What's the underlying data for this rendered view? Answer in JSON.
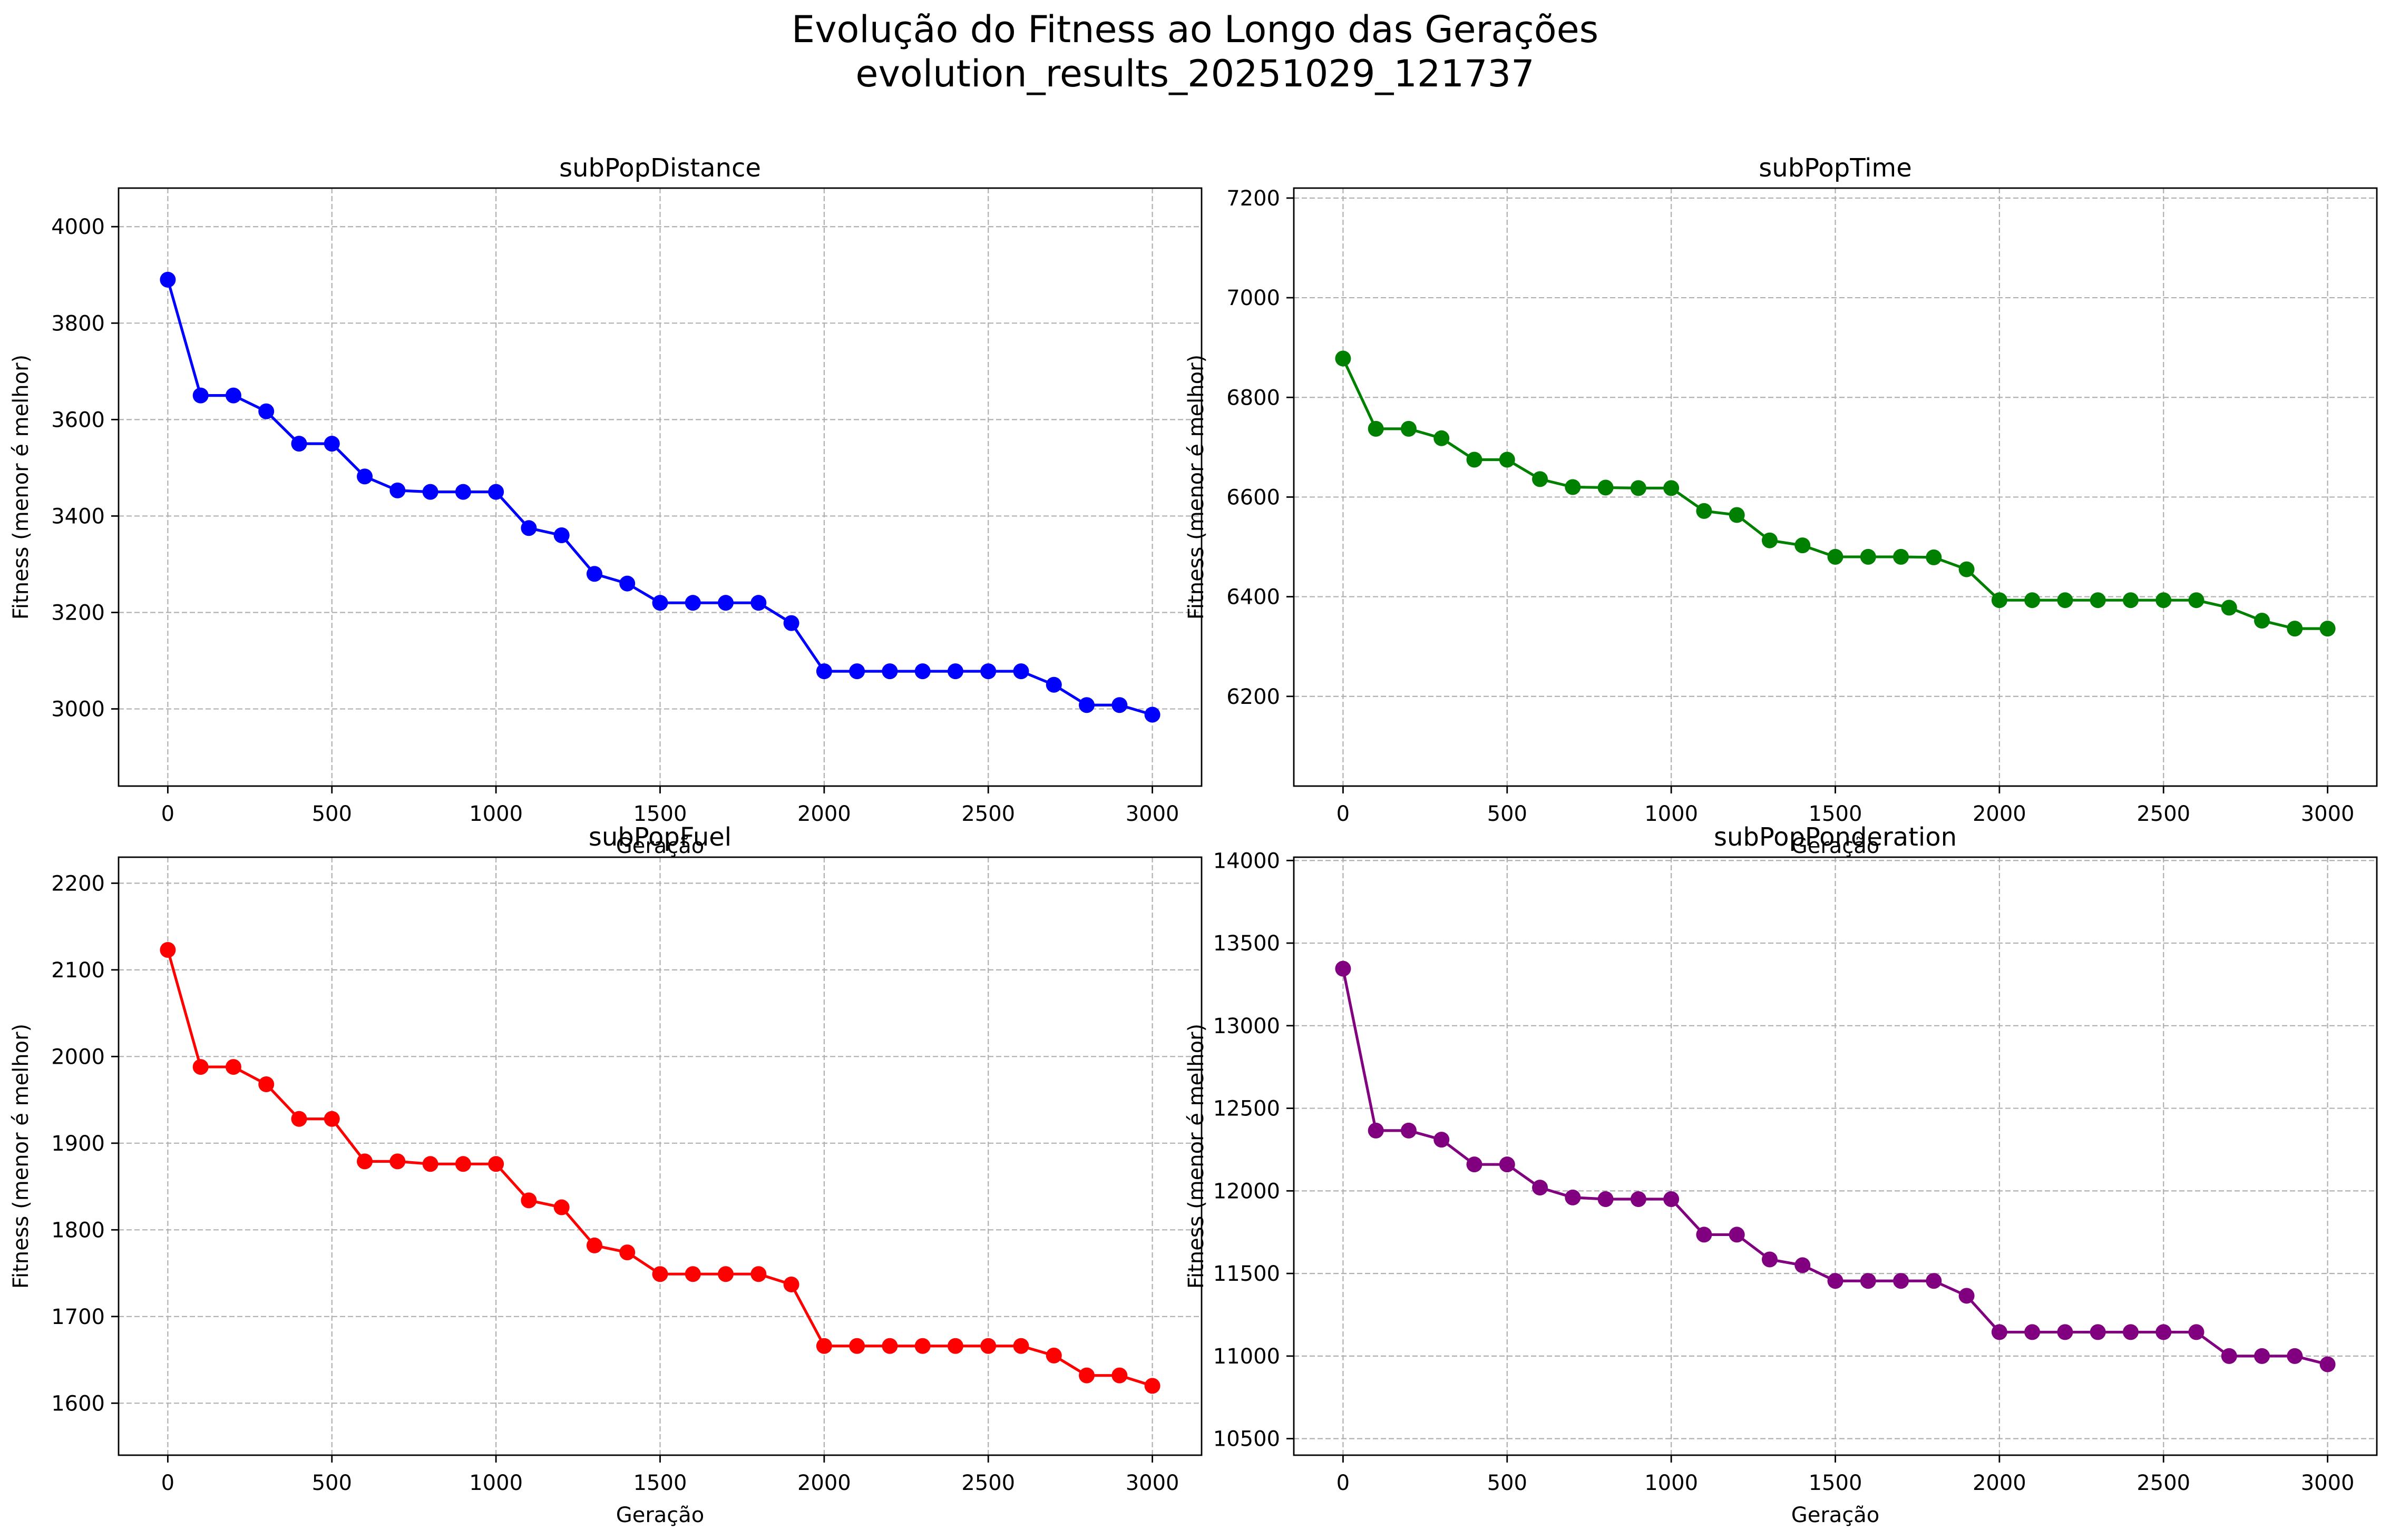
{
  "figure": {
    "title_line1": "Evolução do Fitness ao Longo das Gerações",
    "title_line2": "evolution_results_20251029_121737"
  },
  "chart_data": [
    {
      "type": "line",
      "title": "subPopDistance",
      "xlabel": "Geração",
      "ylabel": "Fitness (menor é melhor)",
      "color": "#0000ff",
      "marker": "circle",
      "grid": true,
      "xlim": [
        -150,
        3150
      ],
      "ylim": [
        2840,
        4080
      ],
      "xticks": [
        0,
        500,
        1000,
        1500,
        2000,
        2500,
        3000
      ],
      "yticks": [
        3000,
        3200,
        3400,
        3600,
        3800,
        4000
      ],
      "x": [
        0,
        100,
        200,
        300,
        400,
        500,
        600,
        700,
        800,
        900,
        1000,
        1100,
        1200,
        1300,
        1400,
        1500,
        1600,
        1700,
        1800,
        1900,
        2000,
        2100,
        2200,
        2300,
        2400,
        2500,
        2600,
        2700,
        2800,
        2900,
        3000
      ],
      "y": [
        3890,
        3650,
        3650,
        3617,
        3550,
        3550,
        3482,
        3453,
        3450,
        3450,
        3450,
        3375,
        3360,
        3280,
        3260,
        3220,
        3220,
        3220,
        3220,
        3178,
        3078,
        3078,
        3078,
        3078,
        3078,
        3078,
        3078,
        3050,
        3008,
        3008,
        2988
      ]
    },
    {
      "type": "line",
      "title": "subPopTime",
      "xlabel": "Geração",
      "ylabel": "Fitness (menor é melhor)",
      "color": "#008000",
      "marker": "circle",
      "grid": true,
      "xlim": [
        -150,
        3150
      ],
      "ylim": [
        6020,
        7220
      ],
      "xticks": [
        0,
        500,
        1000,
        1500,
        2000,
        2500,
        3000
      ],
      "yticks": [
        6200,
        6400,
        6600,
        6800,
        7000,
        7200
      ],
      "x": [
        0,
        100,
        200,
        300,
        400,
        500,
        600,
        700,
        800,
        900,
        1000,
        1100,
        1200,
        1300,
        1400,
        1500,
        1600,
        1700,
        1800,
        1900,
        2000,
        2100,
        2200,
        2300,
        2400,
        2500,
        2600,
        2700,
        2800,
        2900,
        3000
      ],
      "y": [
        6878,
        6737,
        6737,
        6718,
        6675,
        6675,
        6636,
        6620,
        6619,
        6618,
        6618,
        6572,
        6564,
        6513,
        6503,
        6480,
        6480,
        6480,
        6479,
        6455,
        6393,
        6393,
        6393,
        6393,
        6393,
        6393,
        6393,
        6378,
        6352,
        6336,
        6336
      ]
    },
    {
      "type": "line",
      "title": "subPopFuel",
      "xlabel": "Geração",
      "ylabel": "Fitness (menor é melhor)",
      "color": "#ff0000",
      "marker": "circle",
      "grid": true,
      "xlim": [
        -150,
        3150
      ],
      "ylim": [
        1540,
        2230
      ],
      "xticks": [
        0,
        500,
        1000,
        1500,
        2000,
        2500,
        3000
      ],
      "yticks": [
        1600,
        1700,
        1800,
        1900,
        2000,
        2100,
        2200
      ],
      "x": [
        0,
        100,
        200,
        300,
        400,
        500,
        600,
        700,
        800,
        900,
        1000,
        1100,
        1200,
        1300,
        1400,
        1500,
        1600,
        1700,
        1800,
        1900,
        2000,
        2100,
        2200,
        2300,
        2400,
        2500,
        2600,
        2700,
        2800,
        2900,
        3000
      ],
      "y": [
        2123,
        1988,
        1988,
        1968,
        1928,
        1928,
        1879,
        1879,
        1876,
        1876,
        1876,
        1834,
        1826,
        1782,
        1774,
        1749,
        1749,
        1749,
        1749,
        1737,
        1666,
        1666,
        1666,
        1666,
        1666,
        1666,
        1666,
        1655,
        1632,
        1632,
        1620
      ]
    },
    {
      "type": "line",
      "title": "subPopPonderation",
      "xlabel": "Geração",
      "ylabel": "Fitness (menor é melhor)",
      "color": "#800080",
      "marker": "circle",
      "grid": true,
      "xlim": [
        -150,
        3150
      ],
      "ylim": [
        10400,
        14020
      ],
      "xticks": [
        0,
        500,
        1000,
        1500,
        2000,
        2500,
        3000
      ],
      "yticks": [
        10500,
        11000,
        11500,
        12000,
        12500,
        13000,
        13500,
        14000
      ],
      "x": [
        0,
        100,
        200,
        300,
        400,
        500,
        600,
        700,
        800,
        900,
        1000,
        1100,
        1200,
        1300,
        1400,
        1500,
        1600,
        1700,
        1800,
        1900,
        2000,
        2100,
        2200,
        2300,
        2400,
        2500,
        2600,
        2700,
        2800,
        2900,
        3000
      ],
      "y": [
        13345,
        12365,
        12365,
        12310,
        12160,
        12160,
        12020,
        11960,
        11950,
        11950,
        11950,
        11735,
        11735,
        11585,
        11550,
        11455,
        11455,
        11455,
        11455,
        11365,
        11145,
        11145,
        11145,
        11145,
        11145,
        11145,
        11145,
        11000,
        11000,
        11000,
        10950
      ]
    }
  ]
}
